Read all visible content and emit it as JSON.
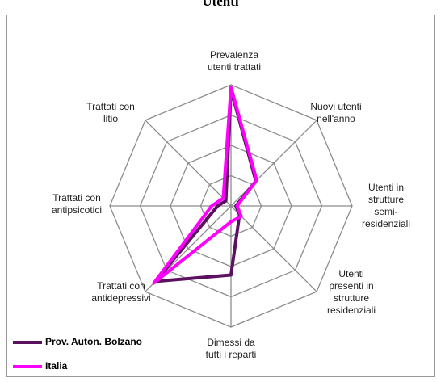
{
  "chart_data": {
    "type": "radar",
    "title": "Utenti",
    "categories": [
      "Prevalenza\nutenti trattati",
      "Nuovi utenti\nnell'anno",
      "Utenti in\nstrutture\nsemi-\nresidenziali",
      "Utenti\npresenti in\nstrutture\nresidenziali",
      "Dimessi da\ntutti i reparti",
      "Trattati con\nantidepressivi",
      "Trattati con\nantipsicotici",
      "Trattati con\nlitio"
    ],
    "series": [
      {
        "name": "Prov. Auton. Bolzano",
        "color": "#5c1060",
        "values": [
          96,
          29,
          4,
          10,
          57,
          88,
          11,
          6
        ]
      },
      {
        "name": "Italia",
        "color": "#ff00ff",
        "values": [
          98,
          30,
          5,
          12,
          13,
          90,
          16,
          9
        ]
      }
    ],
    "ylim": [
      0,
      100
    ],
    "grid": true,
    "legend": "bottom-left"
  }
}
